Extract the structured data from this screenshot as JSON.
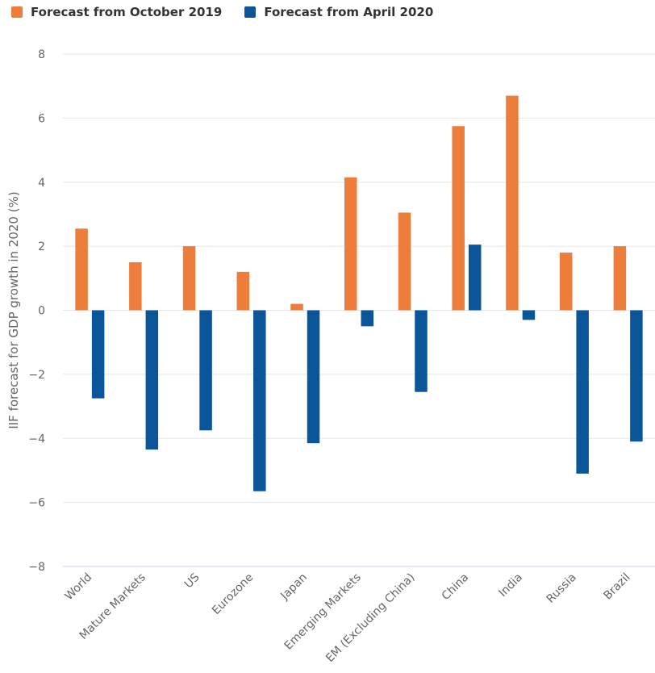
{
  "legend": [
    {
      "label": "Forecast from October 2019",
      "color": "#ED7D3A"
    },
    {
      "label": "Forecast from April 2020",
      "color": "#0A5699"
    }
  ],
  "chart_data": {
    "type": "bar",
    "title": "",
    "xlabel": "",
    "ylabel": "IIF forecast for GDP growth in 2020 (%)",
    "ylim": [
      -8,
      8
    ],
    "yticks": [
      8,
      6,
      4,
      2,
      0,
      -2,
      -4,
      -6,
      -8
    ],
    "ytick_labels": [
      "8",
      "6",
      "4",
      "2",
      "0",
      "−2",
      "−4",
      "−6",
      "−8"
    ],
    "grid": true,
    "legend_position": "top-left",
    "categories": [
      "World",
      "Mature Markets",
      "US",
      "Eurozone",
      "Japan",
      "Emerging Markets",
      "EM (Excluding China)",
      "China",
      "India",
      "Russia",
      "Brazil"
    ],
    "series": [
      {
        "name": "Forecast from October 2019",
        "color": "#ED7D3A",
        "values": [
          2.55,
          1.5,
          2.0,
          1.2,
          0.2,
          4.15,
          3.05,
          5.75,
          6.7,
          1.8,
          2.0
        ]
      },
      {
        "name": "Forecast from April 2020",
        "color": "#0A5699",
        "values": [
          -2.75,
          -4.35,
          -3.75,
          -5.65,
          -4.15,
          -0.5,
          -2.55,
          2.05,
          -0.3,
          -5.1,
          -4.1
        ]
      }
    ]
  }
}
